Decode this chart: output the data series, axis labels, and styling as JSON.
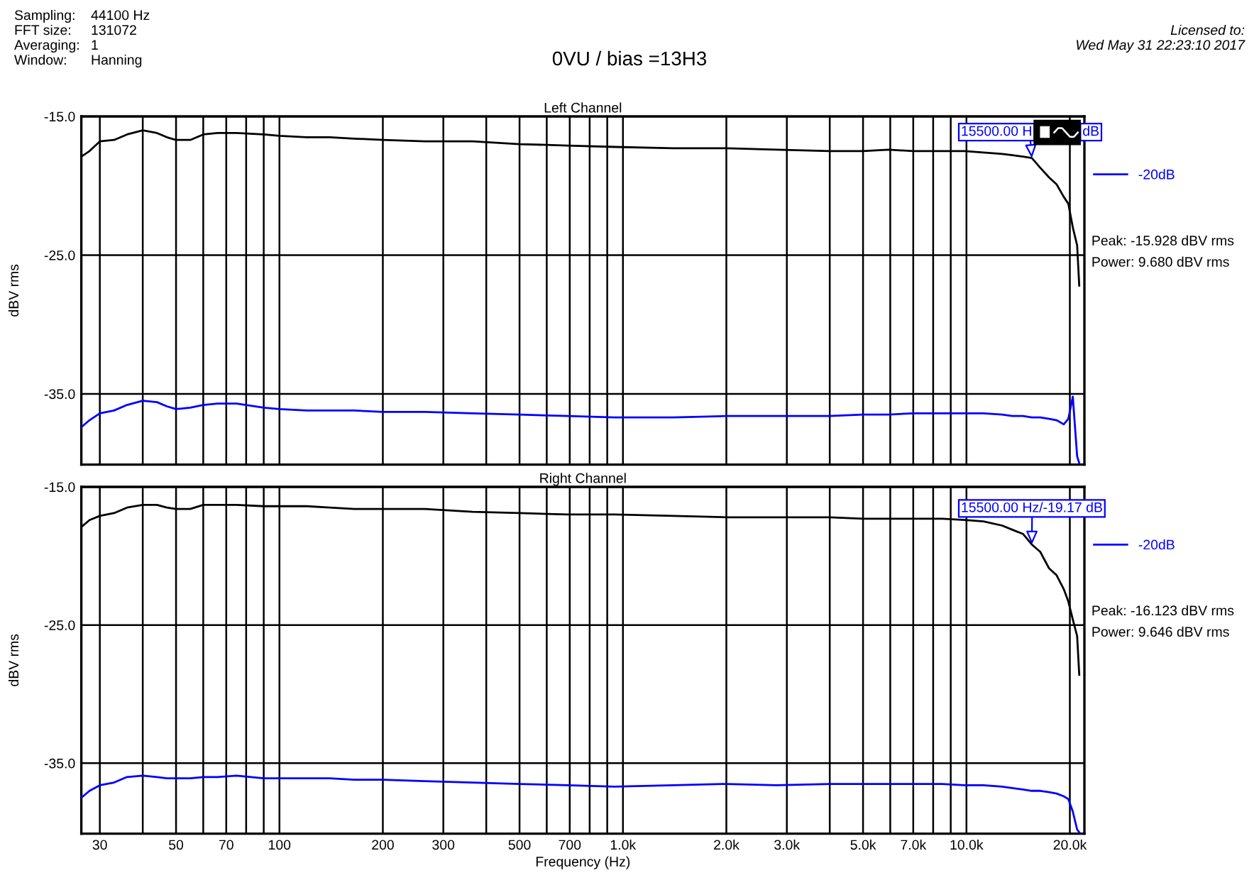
{
  "chart_data": [
    {
      "type": "line",
      "title": "0VU / bias =13H3",
      "subtitle": "Left Channel",
      "ylabel": "dBV rms",
      "x": [
        26.5,
        28,
        30,
        33,
        36,
        40,
        44,
        47,
        50,
        55,
        60,
        66,
        75,
        90,
        100,
        120,
        140,
        165,
        200,
        265,
        365,
        500,
        690,
        945,
        1400,
        2000,
        2800,
        4000,
        5000,
        5940,
        7000,
        8500,
        9880,
        11200,
        12700,
        13600,
        14600,
        15500,
        16400,
        17400,
        18300,
        19200,
        19800,
        20400,
        21000,
        21300
      ],
      "series": [
        {
          "color": "#000000",
          "values": [
            -17.9,
            -17.5,
            -16.8,
            -16.7,
            -16.3,
            -16.0,
            -16.2,
            -16.5,
            -16.7,
            -16.7,
            -16.3,
            -16.2,
            -16.2,
            -16.3,
            -16.4,
            -16.5,
            -16.5,
            -16.6,
            -16.7,
            -16.8,
            -16.8,
            -17.0,
            -17.1,
            -17.2,
            -17.3,
            -17.3,
            -17.4,
            -17.5,
            -17.5,
            -17.4,
            -17.5,
            -17.5,
            -17.5,
            -17.6,
            -17.7,
            -17.8,
            -17.9,
            -18.0,
            -18.7,
            -19.4,
            -19.9,
            -20.8,
            -21.3,
            -23.0,
            -24.3,
            -27.2
          ]
        },
        {
          "name": "-20dB",
          "color": "#0000ff",
          "values": [
            -37.4,
            -36.9,
            -36.4,
            -36.2,
            -35.8,
            -35.5,
            -35.6,
            -35.9,
            -36.1,
            -36.0,
            -35.8,
            -35.7,
            -35.7,
            -36.0,
            -36.1,
            -36.2,
            -36.2,
            -36.2,
            -36.3,
            -36.3,
            -36.4,
            -36.5,
            -36.6,
            -36.7,
            -36.7,
            -36.6,
            -36.6,
            -36.6,
            -36.5,
            -36.5,
            -36.4,
            -36.4,
            -36.4,
            -36.4,
            -36.5,
            -36.6,
            -36.6,
            -36.7,
            -36.7,
            -36.8,
            -36.9,
            -37.2,
            -36.8,
            -35.2,
            -39.5,
            -40.0
          ]
        }
      ],
      "log": "x",
      "xlim": [
        26.5,
        22050
      ],
      "xticks": [
        30,
        40,
        50,
        60,
        70,
        80,
        90,
        100,
        200,
        300,
        400,
        500,
        600,
        700,
        800,
        900,
        1000,
        2000,
        3000,
        4000,
        5000,
        6000,
        7000,
        8000,
        9000,
        10000,
        20000
      ],
      "ylim": [
        -40.1,
        -15
      ],
      "yticks": [
        {
          "value": -15,
          "label": "-15.0"
        },
        {
          "value": -25,
          "label": "-25.0"
        },
        {
          "value": -35,
          "label": "-35.0"
        }
      ],
      "grid": true,
      "legend": "top right",
      "tick_labels": "y",
      "annotations": [
        "Sampling: 44100 Hz",
        "FFT size: 131072",
        "Averaging: 1",
        "Window: Hanning",
        "Licensed to:",
        "Wed May 31 22:23:10 2017",
        "Peak: -15.928 dBV rms",
        "Power: 9.680 dBV rms",
        {
          "text": "15500.00 H",
          "x": 15500,
          "y": -18.0
        },
        "dB"
      ]
    },
    {
      "type": "line",
      "subtitle": "Right Channel",
      "xlabel": "Frequency (Hz)",
      "ylabel": "dBV rms",
      "x": [
        26.5,
        28,
        30,
        33,
        36,
        40,
        44,
        47,
        50,
        55,
        60,
        66,
        75,
        90,
        100,
        120,
        140,
        165,
        200,
        265,
        365,
        500,
        690,
        945,
        1400,
        2000,
        2800,
        4000,
        5000,
        5940,
        7000,
        8500,
        9880,
        11200,
        12700,
        13600,
        14600,
        15500,
        16400,
        17400,
        18300,
        19200,
        19800,
        20400,
        21000,
        21300
      ],
      "series": [
        {
          "color": "#000000",
          "values": [
            -17.9,
            -17.4,
            -17.1,
            -16.9,
            -16.5,
            -16.3,
            -16.3,
            -16.5,
            -16.6,
            -16.6,
            -16.3,
            -16.3,
            -16.3,
            -16.4,
            -16.4,
            -16.4,
            -16.5,
            -16.6,
            -16.6,
            -16.6,
            -16.8,
            -16.9,
            -17.0,
            -17.0,
            -17.1,
            -17.2,
            -17.2,
            -17.2,
            -17.3,
            -17.3,
            -17.3,
            -17.3,
            -17.4,
            -17.5,
            -17.8,
            -18.1,
            -18.4,
            -19.17,
            -19.7,
            -20.9,
            -21.4,
            -22.4,
            -23.3,
            -24.6,
            -25.8,
            -28.6
          ]
        },
        {
          "name": "-20dB",
          "color": "#0000ff",
          "values": [
            -37.5,
            -37.0,
            -36.6,
            -36.4,
            -36.0,
            -35.9,
            -36.0,
            -36.1,
            -36.1,
            -36.1,
            -36.0,
            -36.0,
            -35.9,
            -36.1,
            -36.1,
            -36.1,
            -36.1,
            -36.2,
            -36.2,
            -36.3,
            -36.4,
            -36.5,
            -36.6,
            -36.7,
            -36.6,
            -36.5,
            -36.6,
            -36.5,
            -36.5,
            -36.5,
            -36.5,
            -36.5,
            -36.6,
            -36.6,
            -36.7,
            -36.8,
            -36.9,
            -37.0,
            -37.0,
            -37.1,
            -37.2,
            -37.4,
            -37.6,
            -38.5,
            -39.8,
            -40.0
          ]
        }
      ],
      "log": "x",
      "xlim": [
        26.5,
        22050
      ],
      "xticks": [
        30,
        {
          "value": 40,
          "label": null
        },
        50,
        {
          "value": 60,
          "label": null
        },
        70,
        {
          "value": 80,
          "label": null
        },
        {
          "value": 90,
          "label": null
        },
        100,
        200,
        300,
        {
          "value": 400,
          "label": null
        },
        500,
        {
          "value": 600,
          "label": null
        },
        700,
        {
          "value": 800,
          "label": null
        },
        {
          "value": 900,
          "label": null
        },
        {
          "value": 1000,
          "label": "1.0k"
        },
        {
          "value": 2000,
          "label": "2.0k"
        },
        {
          "value": 3000,
          "label": "3.0k"
        },
        {
          "value": 4000,
          "label": null
        },
        {
          "value": 5000,
          "label": "5.0k"
        },
        {
          "value": 6000,
          "label": null
        },
        {
          "value": 7000,
          "label": "7.0k"
        },
        {
          "value": 8000,
          "label": null
        },
        {
          "value": 9000,
          "label": null
        },
        {
          "value": 10000,
          "label": "10.0k"
        },
        {
          "value": 20000,
          "label": "20.0k"
        }
      ],
      "ylim": [
        -40.1,
        -15
      ],
      "yticks": [
        {
          "value": -15,
          "label": "-15.0"
        },
        {
          "value": -25,
          "label": "-25.0"
        },
        {
          "value": -35,
          "label": "-35.0"
        }
      ],
      "grid": true,
      "legend": "top right",
      "annotations": [
        "Peak: -16.123 dBV rms",
        "Power: 9.646 dBV rms",
        {
          "text": "15500.00 Hz/-19.17 dB",
          "x": 15500,
          "y": -19.17
        }
      ]
    }
  ]
}
